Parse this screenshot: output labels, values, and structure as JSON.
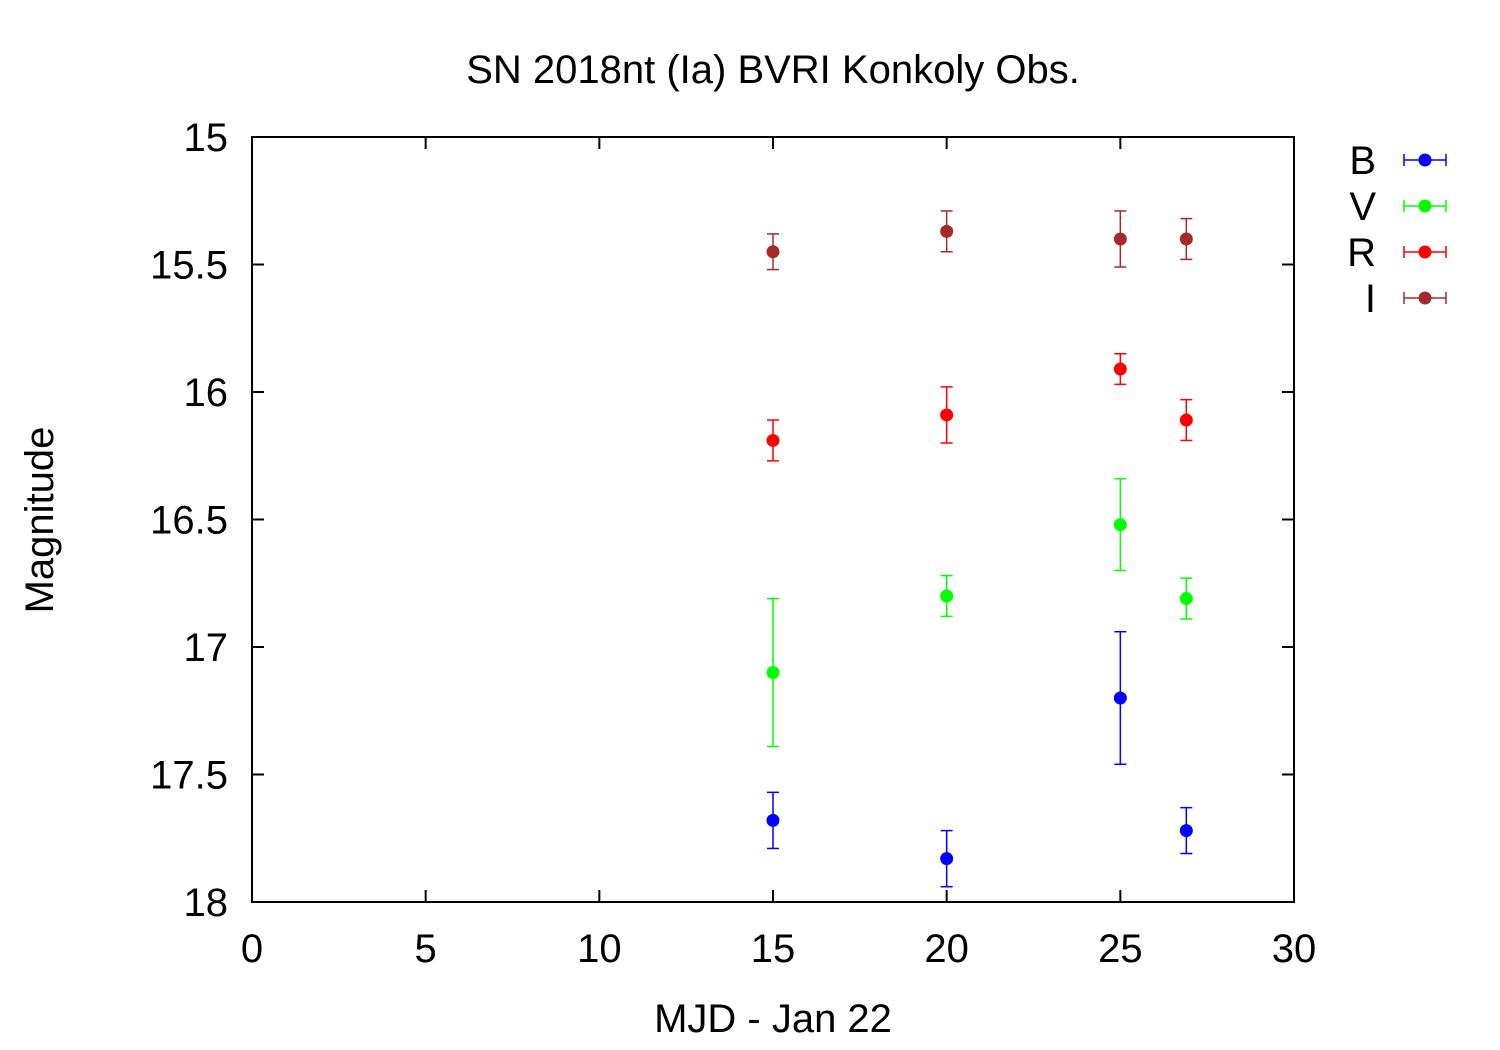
{
  "chart_data": {
    "type": "scatter",
    "title": "SN 2018nt (Ia) BVRI Konkoly Obs.",
    "xlabel": "MJD - Jan 22",
    "ylabel": "Magnitude",
    "xlim": [
      0,
      30
    ],
    "ylim": [
      15,
      18
    ],
    "y_inverted": true,
    "x_ticks": [
      "0",
      "5",
      "10",
      "15",
      "20",
      "25",
      "30"
    ],
    "y_ticks": [
      "15",
      "15.5",
      "16",
      "16.5",
      "17",
      "17.5",
      "18"
    ],
    "x_tick_values": [
      0,
      5,
      10,
      15,
      20,
      25,
      30
    ],
    "y_tick_values": [
      15,
      15.5,
      16,
      16.5,
      17,
      17.5,
      18
    ],
    "grid": false,
    "legend_position": "outside-top-right",
    "error_bars": true,
    "series": [
      {
        "name": "B",
        "color": "#0000ff",
        "points": [
          {
            "x": 15.0,
            "y": 17.68,
            "err": 0.11
          },
          {
            "x": 20.0,
            "y": 17.83,
            "err": 0.11
          },
          {
            "x": 25.0,
            "y": 17.2,
            "err": 0.26
          },
          {
            "x": 26.9,
            "y": 17.72,
            "err": 0.09
          }
        ]
      },
      {
        "name": "V",
        "color": "#00ff00",
        "points": [
          {
            "x": 15.0,
            "y": 17.1,
            "err": 0.29
          },
          {
            "x": 20.0,
            "y": 16.8,
            "err": 0.08
          },
          {
            "x": 25.0,
            "y": 16.52,
            "err": 0.18
          },
          {
            "x": 26.9,
            "y": 16.81,
            "err": 0.08
          }
        ]
      },
      {
        "name": "R",
        "color": "#ff0000",
        "points": [
          {
            "x": 15.0,
            "y": 16.19,
            "err": 0.08
          },
          {
            "x": 20.0,
            "y": 16.09,
            "err": 0.11
          },
          {
            "x": 25.0,
            "y": 15.91,
            "err": 0.06
          },
          {
            "x": 26.9,
            "y": 16.11,
            "err": 0.08
          }
        ]
      },
      {
        "name": "I",
        "color": "#a52a2a",
        "points": [
          {
            "x": 15.0,
            "y": 15.45,
            "err": 0.07
          },
          {
            "x": 20.0,
            "y": 15.37,
            "err": 0.08
          },
          {
            "x": 25.0,
            "y": 15.4,
            "err": 0.11
          },
          {
            "x": 26.9,
            "y": 15.4,
            "err": 0.08
          }
        ]
      }
    ]
  }
}
